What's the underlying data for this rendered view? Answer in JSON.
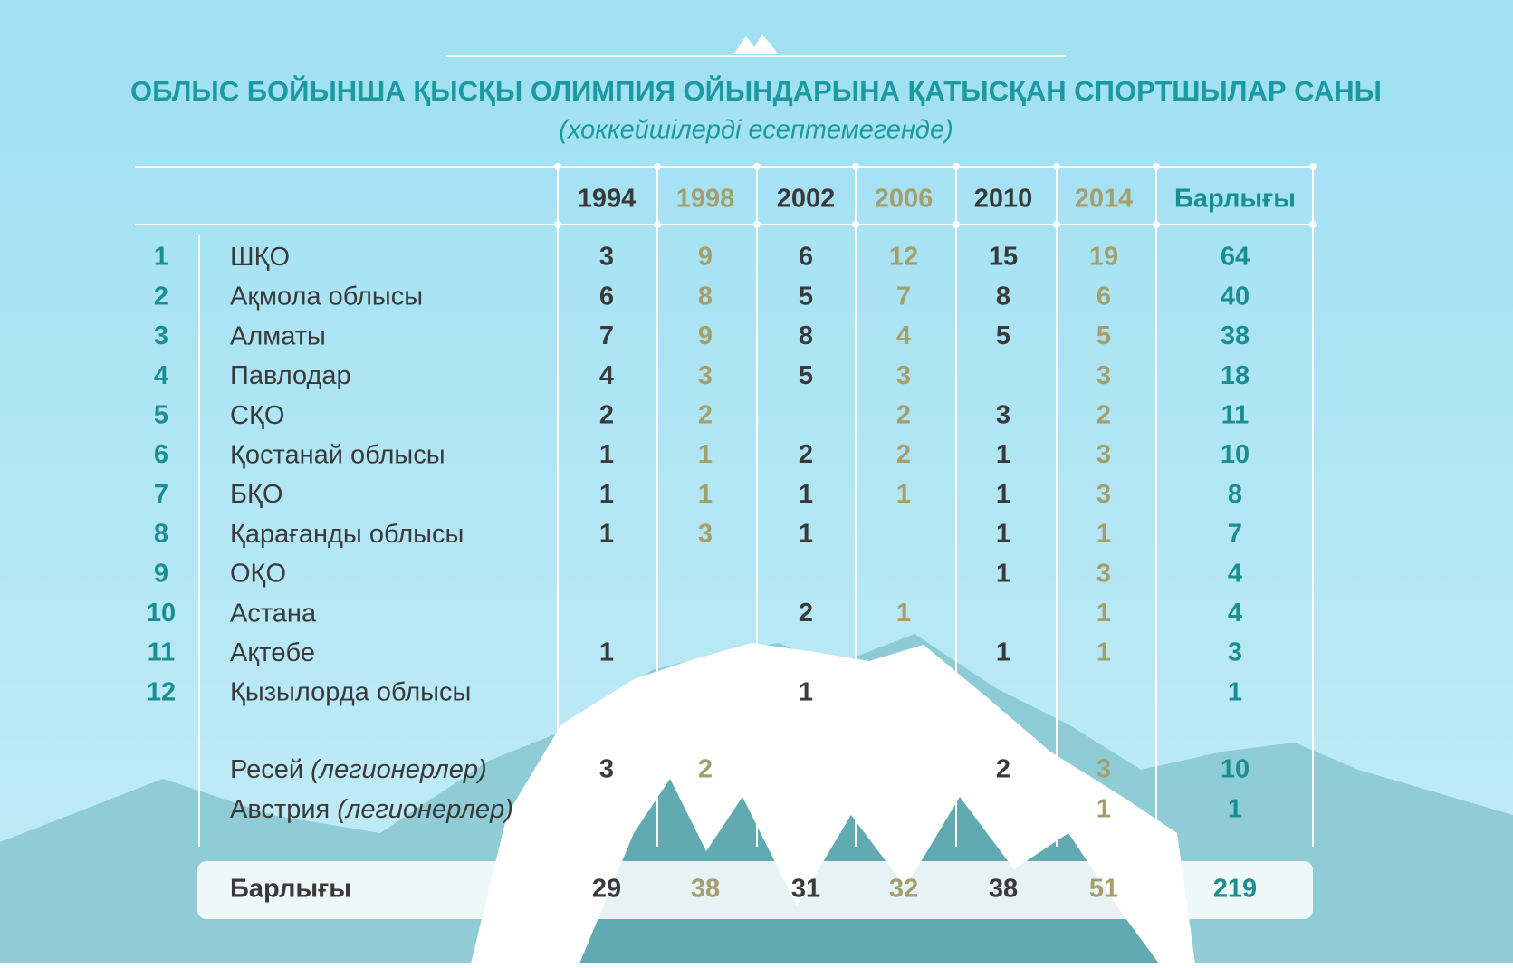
{
  "header": {
    "title": "ОБЛЫС БОЙЫНША ҚЫСҚЫ ОЛИМПИЯ ОЙЫНДАРЫНА ҚАТЫСҚАН СПОРТШЫЛАР САНЫ",
    "subtitle": "(хоккейшілерді есептемегенде)"
  },
  "table": {
    "columns": [
      "1994",
      "1998",
      "2002",
      "2006",
      "2010",
      "2014",
      "Барлығы"
    ],
    "rows": [
      {
        "num": "1",
        "name": "ШҚО",
        "values": [
          3,
          9,
          6,
          12,
          15,
          19,
          64
        ]
      },
      {
        "num": "2",
        "name": "Ақмола облысы",
        "values": [
          6,
          8,
          5,
          7,
          8,
          6,
          40
        ]
      },
      {
        "num": "3",
        "name": "Алматы",
        "values": [
          7,
          9,
          8,
          4,
          5,
          5,
          38
        ]
      },
      {
        "num": "4",
        "name": "Павлодар",
        "values": [
          4,
          3,
          5,
          3,
          null,
          3,
          18
        ]
      },
      {
        "num": "5",
        "name": "СҚО",
        "values": [
          2,
          2,
          null,
          2,
          3,
          2,
          11
        ]
      },
      {
        "num": "6",
        "name": "Қостанай облысы",
        "values": [
          1,
          1,
          2,
          2,
          1,
          3,
          10
        ]
      },
      {
        "num": "7",
        "name": "БҚО",
        "values": [
          1,
          1,
          1,
          1,
          1,
          3,
          8
        ]
      },
      {
        "num": "8",
        "name": "Қарағанды облысы",
        "values": [
          1,
          3,
          1,
          null,
          1,
          1,
          7
        ]
      },
      {
        "num": "9",
        "name": "ОҚО",
        "values": [
          null,
          null,
          null,
          null,
          1,
          3,
          4
        ]
      },
      {
        "num": "10",
        "name": "Астана",
        "values": [
          null,
          null,
          2,
          1,
          null,
          1,
          4
        ]
      },
      {
        "num": "11",
        "name": "Ақтөбе",
        "values": [
          1,
          null,
          null,
          null,
          1,
          1,
          3
        ]
      },
      {
        "num": "12",
        "name": "Қызылорда облысы",
        "values": [
          null,
          null,
          1,
          null,
          null,
          null,
          1
        ]
      },
      {
        "name": "Ресей",
        "note": "(легионерлер)",
        "values": [
          3,
          2,
          null,
          null,
          2,
          3,
          10
        ]
      },
      {
        "name": "Австрия",
        "note": "(легионерлер)",
        "values": [
          null,
          null,
          null,
          null,
          null,
          1,
          1
        ]
      }
    ],
    "total": {
      "label": "Барлығы",
      "values": [
        29,
        38,
        31,
        32,
        38,
        51,
        219
      ]
    }
  }
}
